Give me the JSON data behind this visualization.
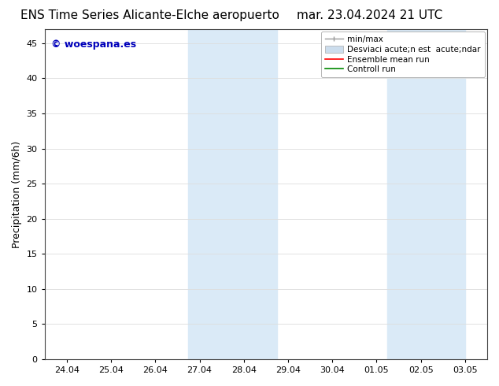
{
  "title_left": "ENS Time Series Alicante-Elche aeropuerto",
  "title_right": "mar. 23.04.2024 21 UTC",
  "ylabel": "Precipitation (mm/6h)",
  "xlabel": "",
  "ylim": [
    0,
    47
  ],
  "yticks": [
    0,
    5,
    10,
    15,
    20,
    25,
    30,
    35,
    40,
    45
  ],
  "xtick_labels": [
    "24.04",
    "25.04",
    "26.04",
    "27.04",
    "28.04",
    "29.04",
    "30.04",
    "01.05",
    "02.05",
    "03.05"
  ],
  "xtick_positions": [
    0,
    1,
    2,
    3,
    4,
    5,
    6,
    7,
    8,
    9
  ],
  "xlim": [
    -0.5,
    9.5
  ],
  "background_color": "#ffffff",
  "plot_bg_color": "#ffffff",
  "shaded_regions": [
    {
      "x_start": 2.75,
      "x_end": 4.75,
      "color": "#daeaf7"
    },
    {
      "x_start": 7.25,
      "x_end": 9.0,
      "color": "#daeaf7"
    }
  ],
  "watermark_text": "© woespana.es",
  "watermark_color": "#0000bb",
  "legend_labels": [
    "min/max",
    "Desviaci acute;n est  acute;ndar",
    "Ensemble mean run",
    "Controll run"
  ],
  "legend_colors": [
    "#999999",
    "#ccdded",
    "#ff0000",
    "#008800"
  ],
  "title_fontsize": 11,
  "tick_fontsize": 8,
  "ylabel_fontsize": 9,
  "watermark_fontsize": 9,
  "legend_fontsize": 7.5
}
